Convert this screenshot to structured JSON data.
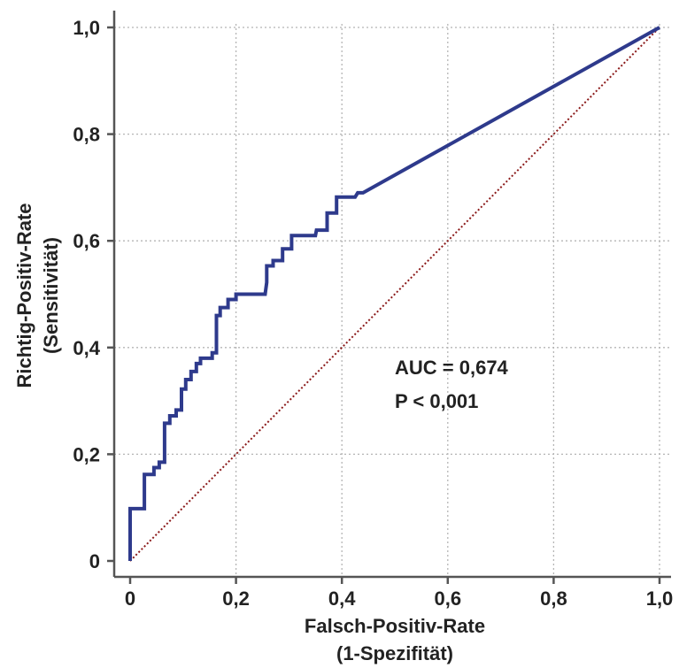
{
  "chart_data": {
    "type": "line",
    "title": "",
    "xlabel": [
      "Falsch-Positiv-Rate",
      "(1-Spezifität)"
    ],
    "ylabel": [
      "Richtig-Positiv-Rate",
      "(Sensitivität)"
    ],
    "xlim": [
      0,
      1
    ],
    "ylim": [
      0,
      1
    ],
    "x_ticks": [
      {
        "value": 0,
        "label": "0"
      },
      {
        "value": 0.2,
        "label": "0,2"
      },
      {
        "value": 0.4,
        "label": "0,4"
      },
      {
        "value": 0.6,
        "label": "0,6"
      },
      {
        "value": 0.8,
        "label": "0,8"
      },
      {
        "value": 1.0,
        "label": "1,0"
      }
    ],
    "y_ticks": [
      {
        "value": 0,
        "label": "0"
      },
      {
        "value": 0.2,
        "label": "0,2"
      },
      {
        "value": 0.4,
        "label": "0,4"
      },
      {
        "value": 0.6,
        "label": "0,6"
      },
      {
        "value": 0.8,
        "label": "0,8"
      },
      {
        "value": 1.0,
        "label": "1,0"
      }
    ],
    "grid": true,
    "annotations": [
      "AUC = 0,674",
      "P < 0,001"
    ],
    "colors": {
      "roc": "#2e3a8c",
      "reference": "#8b1a1a",
      "grid": "#b5b5b5",
      "axis": "#555555"
    },
    "series": [
      {
        "style": "step",
        "points": [
          [
            0,
            0
          ],
          [
            0,
            0.098
          ],
          [
            0.027,
            0.098
          ],
          [
            0.027,
            0.162
          ],
          [
            0.045,
            0.162
          ],
          [
            0.045,
            0.175
          ],
          [
            0.055,
            0.175
          ],
          [
            0.055,
            0.185
          ],
          [
            0.065,
            0.185
          ],
          [
            0.065,
            0.258
          ],
          [
            0.075,
            0.258
          ],
          [
            0.075,
            0.272
          ],
          [
            0.087,
            0.272
          ],
          [
            0.087,
            0.283
          ],
          [
            0.097,
            0.283
          ],
          [
            0.097,
            0.322
          ],
          [
            0.105,
            0.322
          ],
          [
            0.105,
            0.34
          ],
          [
            0.115,
            0.34
          ],
          [
            0.115,
            0.355
          ],
          [
            0.125,
            0.355
          ],
          [
            0.125,
            0.37
          ],
          [
            0.133,
            0.37
          ],
          [
            0.133,
            0.38
          ],
          [
            0.155,
            0.38
          ],
          [
            0.155,
            0.39
          ],
          [
            0.163,
            0.39
          ],
          [
            0.163,
            0.46
          ],
          [
            0.17,
            0.46
          ],
          [
            0.17,
            0.475
          ],
          [
            0.185,
            0.475
          ],
          [
            0.185,
            0.49
          ],
          [
            0.2,
            0.49
          ],
          [
            0.2,
            0.5
          ],
          [
            0.255,
            0.5
          ],
          [
            0.258,
            0.522
          ],
          [
            0.258,
            0.553
          ],
          [
            0.27,
            0.553
          ],
          [
            0.27,
            0.563
          ],
          [
            0.288,
            0.563
          ],
          [
            0.288,
            0.585
          ],
          [
            0.305,
            0.585
          ],
          [
            0.305,
            0.61
          ],
          [
            0.35,
            0.61
          ],
          [
            0.352,
            0.62
          ],
          [
            0.372,
            0.62
          ],
          [
            0.372,
            0.652
          ],
          [
            0.39,
            0.652
          ],
          [
            0.39,
            0.682
          ],
          [
            0.425,
            0.682
          ],
          [
            0.43,
            0.69
          ],
          [
            0.44,
            0.69
          ],
          [
            1.0,
            1.0
          ]
        ]
      },
      {
        "style": "reference-diagonal",
        "points": [
          [
            0,
            0
          ],
          [
            1,
            1
          ]
        ]
      }
    ]
  }
}
